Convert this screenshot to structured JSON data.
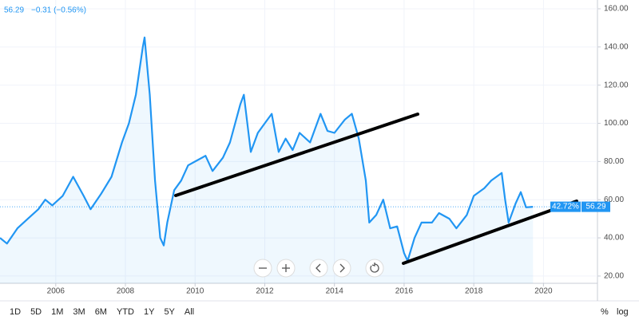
{
  "chart_data": {
    "type": "line",
    "change": "−0.31 (−0.56%)",
    "percent_label": "42.72%",
    "ranges": [
      "1D",
      "5D",
      "1M",
      "3M",
      "6M",
      "YTD",
      "1Y",
      "5Y",
      "All"
    ],
    "scale_options": [
      "%",
      "log"
    ],
    "xlim": [
      2004.4,
      2021.55
    ],
    "xticks": [
      2006,
      2008,
      2010,
      2012,
      2014,
      2016,
      2018,
      2020
    ],
    "ylim": [
      16.2,
      164.6
    ],
    "yticks": [
      {
        "value": 20,
        "label": "20.00"
      },
      {
        "value": 40,
        "label": "40.00"
      },
      {
        "value": 60,
        "label": "60.00"
      },
      {
        "value": 80,
        "label": "80.00"
      },
      {
        "value": 100,
        "label": "100.00"
      },
      {
        "value": 120,
        "label": "120.00"
      },
      {
        "value": 140,
        "label": "140.00"
      },
      {
        "value": 160,
        "label": "160.00"
      }
    ],
    "grid": true,
    "x": [
      2004.4,
      2004.6,
      2004.9,
      2005.2,
      2005.5,
      2005.7,
      2005.9,
      2006.2,
      2006.5,
      2006.8,
      2007.0,
      2007.3,
      2007.6,
      2007.9,
      2008.1,
      2008.3,
      2008.5,
      2008.55,
      2008.7,
      2008.85,
      2009.0,
      2009.1,
      2009.2,
      2009.4,
      2009.6,
      2009.8,
      2010.0,
      2010.3,
      2010.5,
      2010.8,
      2011.0,
      2011.3,
      2011.4,
      2011.6,
      2011.8,
      2012.0,
      2012.2,
      2012.4,
      2012.6,
      2012.8,
      2013.0,
      2013.3,
      2013.6,
      2013.8,
      2014.0,
      2014.3,
      2014.5,
      2014.7,
      2014.9,
      2015.0,
      2015.2,
      2015.4,
      2015.6,
      2015.8,
      2016.0,
      2016.1,
      2016.3,
      2016.5,
      2016.8,
      2017.0,
      2017.3,
      2017.5,
      2017.8,
      2018.0,
      2018.3,
      2018.5,
      2018.8,
      2018.9,
      2019.0,
      2019.2,
      2019.35,
      2019.5,
      2019.7
    ],
    "series": [
      {
        "color": "#2196f3",
        "values": [
          40,
          37,
          45,
          50,
          55,
          60,
          57,
          62,
          72,
          62,
          55,
          63,
          72,
          90,
          100,
          115,
          140,
          145,
          115,
          70,
          40,
          36,
          48,
          65,
          70,
          78,
          80,
          83,
          75,
          82,
          90,
          110,
          115,
          85,
          95,
          100,
          105,
          85,
          92,
          86,
          95,
          90,
          105,
          96,
          95,
          102,
          105,
          92,
          70,
          48,
          52,
          60,
          45,
          46,
          32,
          28,
          40,
          48,
          48,
          53,
          50,
          45,
          52,
          62,
          66,
          70,
          74,
          60,
          48,
          58,
          64,
          56,
          56.29
        ]
      }
    ]
  }
}
